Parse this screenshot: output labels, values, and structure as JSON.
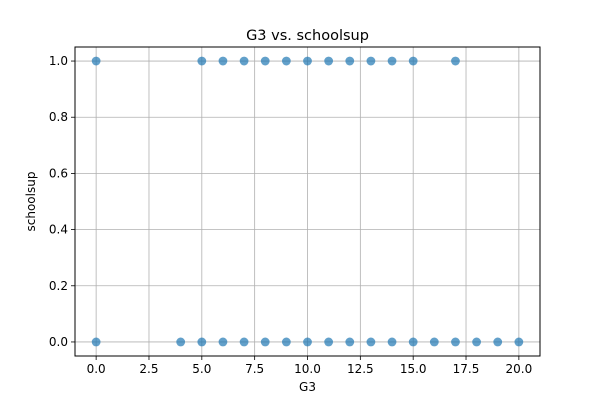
{
  "chart_data": {
    "type": "scatter",
    "title": "G3 vs. schoolsup",
    "xlabel": "G3",
    "ylabel": "schoolsup",
    "xlim": [
      -1.0,
      21.0
    ],
    "ylim": [
      -0.05,
      1.05
    ],
    "xticks": [
      0.0,
      2.5,
      5.0,
      7.5,
      10.0,
      12.5,
      15.0,
      17.5,
      20.0
    ],
    "xtick_labels": [
      "0.0",
      "2.5",
      "5.0",
      "7.5",
      "10.0",
      "12.5",
      "15.0",
      "17.5",
      "20.0"
    ],
    "yticks": [
      0.0,
      0.2,
      0.4,
      0.6,
      0.8,
      1.0
    ],
    "ytick_labels": [
      "0.0",
      "0.2",
      "0.4",
      "0.6",
      "0.8",
      "1.0"
    ],
    "grid": true,
    "marker_color": "#1f77b4",
    "points": [
      {
        "x": 0,
        "y": 1
      },
      {
        "x": 5,
        "y": 1
      },
      {
        "x": 6,
        "y": 1
      },
      {
        "x": 7,
        "y": 1
      },
      {
        "x": 8,
        "y": 1
      },
      {
        "x": 9,
        "y": 1
      },
      {
        "x": 10,
        "y": 1
      },
      {
        "x": 11,
        "y": 1
      },
      {
        "x": 12,
        "y": 1
      },
      {
        "x": 13,
        "y": 1
      },
      {
        "x": 14,
        "y": 1
      },
      {
        "x": 15,
        "y": 1
      },
      {
        "x": 17,
        "y": 1
      },
      {
        "x": 0,
        "y": 0
      },
      {
        "x": 4,
        "y": 0
      },
      {
        "x": 5,
        "y": 0
      },
      {
        "x": 6,
        "y": 0
      },
      {
        "x": 7,
        "y": 0
      },
      {
        "x": 8,
        "y": 0
      },
      {
        "x": 9,
        "y": 0
      },
      {
        "x": 10,
        "y": 0
      },
      {
        "x": 11,
        "y": 0
      },
      {
        "x": 12,
        "y": 0
      },
      {
        "x": 13,
        "y": 0
      },
      {
        "x": 14,
        "y": 0
      },
      {
        "x": 15,
        "y": 0
      },
      {
        "x": 16,
        "y": 0
      },
      {
        "x": 17,
        "y": 0
      },
      {
        "x": 18,
        "y": 0
      },
      {
        "x": 19,
        "y": 0
      },
      {
        "x": 20,
        "y": 0
      }
    ]
  }
}
